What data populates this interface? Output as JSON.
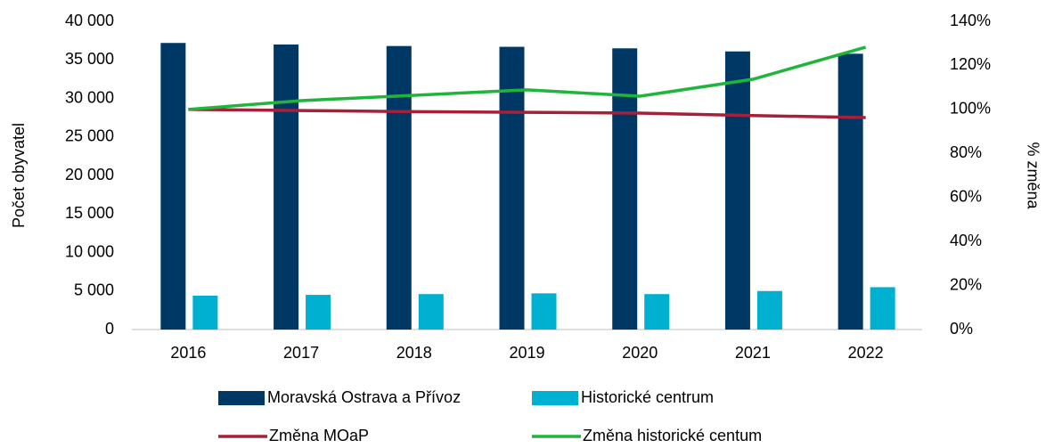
{
  "chart_data": {
    "type": "bar_line",
    "categories": [
      "2016",
      "2017",
      "2018",
      "2019",
      "2020",
      "2021",
      "2022"
    ],
    "y_label": "Počet obyvatel",
    "y2_label": "% změna",
    "series": [
      {
        "name": "Moravská Ostrava a Přívoz",
        "type": "bar",
        "color": "#003865",
        "values": [
          37200,
          37000,
          36800,
          36700,
          36500,
          36100,
          35800
        ]
      },
      {
        "name": "Historické centrum",
        "type": "bar",
        "color": "#00b0d0",
        "values": [
          4400,
          4500,
          4600,
          4700,
          4600,
          5000,
          5500
        ]
      },
      {
        "name": "Změna MOaP",
        "type": "line",
        "axis": "y2",
        "color": "#a6203a",
        "values": [
          100,
          99.5,
          99,
          98.7,
          98.3,
          97.2,
          96.3
        ]
      },
      {
        "name": "Změna historické centum",
        "type": "line",
        "axis": "y2",
        "color": "#1fb53a",
        "values": [
          100,
          104,
          106.4,
          108.9,
          106,
          113.7,
          128.3
        ]
      }
    ],
    "ylim": [
      0,
      40000
    ],
    "yticks": [
      0,
      {
        "value": 5000,
        "label": "5 000"
      },
      {
        "value": 10000,
        "label": "10 000"
      },
      {
        "value": 15000,
        "label": "15 000"
      },
      {
        "value": 20000,
        "label": "20 000"
      },
      {
        "value": 25000,
        "label": "25 000"
      },
      {
        "value": 30000,
        "label": "30 000"
      },
      {
        "value": 35000,
        "label": "35 000"
      },
      {
        "value": 40000,
        "label": "40 000"
      }
    ],
    "y2lim": [
      0,
      140
    ],
    "y2ticks": [
      {
        "value": 0,
        "label": "0%"
      },
      {
        "value": 20,
        "label": "20%"
      },
      {
        "value": 40,
        "label": "40%"
      },
      {
        "value": 60,
        "label": "60%"
      },
      {
        "value": 80,
        "label": "80%"
      },
      {
        "value": 100,
        "label": "100%"
      },
      {
        "value": 120,
        "label": "120%"
      },
      {
        "value": 140,
        "label": "140%"
      }
    ],
    "legend": "bottom"
  }
}
